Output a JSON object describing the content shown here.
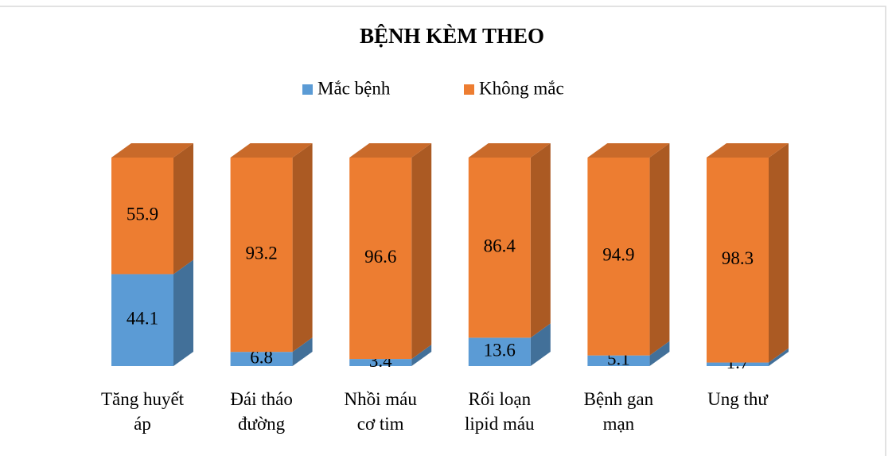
{
  "chart_data": {
    "type": "stacked-bar-3d",
    "title": "BỆNH KÈM THEO",
    "categories": [
      "Tăng huyết áp",
      "Đái tháo đường",
      "Nhồi máu cơ tim",
      "Rối loạn lipid máu",
      "Bệnh gan mạn",
      "Ung thư"
    ],
    "series": [
      {
        "name": "Mắc bệnh",
        "color": "#5b9bd5",
        "values": [
          44.1,
          6.8,
          3.4,
          13.6,
          5.1,
          1.7
        ]
      },
      {
        "name": "Không mắc",
        "color": "#ed7d31",
        "values": [
          55.9,
          93.2,
          96.6,
          86.4,
          94.9,
          98.3
        ]
      }
    ],
    "legend": "top"
  }
}
